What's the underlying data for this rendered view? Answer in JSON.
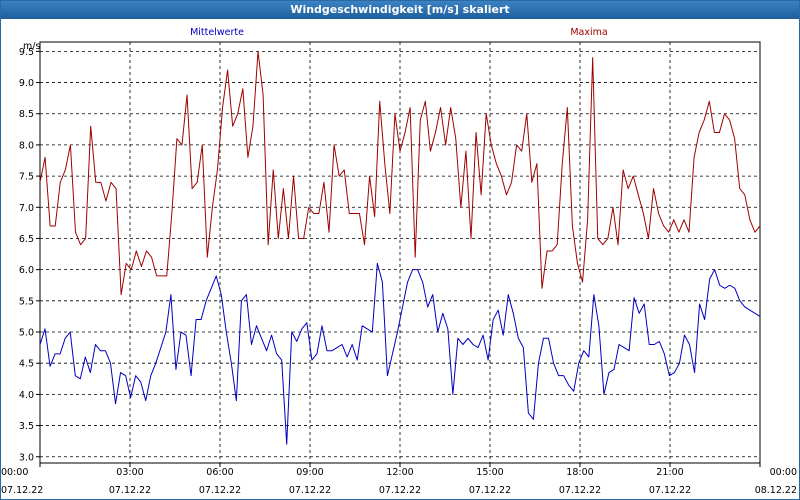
{
  "window": {
    "title": "Windgeschwindigkeit [m/s] skaliert"
  },
  "chart_data": {
    "type": "line",
    "title": "Windgeschwindigkeit [m/s] skaliert",
    "ylabel": "m/s",
    "ylim": [
      2.9,
      9.65
    ],
    "y_ticks": [
      "3.0",
      "3.5",
      "4.0",
      "4.5",
      "5.0",
      "5.5",
      "6.0",
      "6.5",
      "7.0",
      "7.5",
      "8.0",
      "8.5",
      "9.0",
      "9.5"
    ],
    "x_ticks": [
      {
        "time": "00:00",
        "date": "07.12.22"
      },
      {
        "time": "03:00",
        "date": "07.12.22"
      },
      {
        "time": "06:00",
        "date": "07.12.22"
      },
      {
        "time": "09:00",
        "date": "07.12.22"
      },
      {
        "time": "12:00",
        "date": "07.12.22"
      },
      {
        "time": "15:00",
        "date": "07.12.22"
      },
      {
        "time": "18:00",
        "date": "07.12.22"
      },
      {
        "time": "21:00",
        "date": "07.12.22"
      },
      {
        "time": "00:00",
        "date": "08.12.22"
      }
    ],
    "grid": true,
    "legend_placement": "top",
    "series": [
      {
        "name": "Mittelwerte",
        "color": "#0000c0",
        "values": [
          4.8,
          5.05,
          4.45,
          4.65,
          4.65,
          4.9,
          5.0,
          4.3,
          4.25,
          4.6,
          4.35,
          4.8,
          4.7,
          4.7,
          4.5,
          3.85,
          4.35,
          4.3,
          3.95,
          4.3,
          4.2,
          3.9,
          4.3,
          4.5,
          4.75,
          5.0,
          5.6,
          4.4,
          5.0,
          4.95,
          4.3,
          5.2,
          5.2,
          5.5,
          5.7,
          5.9,
          5.6,
          5.0,
          4.5,
          3.9,
          5.5,
          5.6,
          4.8,
          5.1,
          4.9,
          4.7,
          4.95,
          4.65,
          4.55,
          3.2,
          5.0,
          4.85,
          5.05,
          5.15,
          4.55,
          4.65,
          5.1,
          4.7,
          4.7,
          4.75,
          4.8,
          4.6,
          4.8,
          4.55,
          5.1,
          5.05,
          5.0,
          6.1,
          5.8,
          4.3,
          4.65,
          5.0,
          5.4,
          5.8,
          6.0,
          6.0,
          5.8,
          5.4,
          5.6,
          5.0,
          5.3,
          5.05,
          4.0,
          4.9,
          4.8,
          4.9,
          4.8,
          4.75,
          4.95,
          4.55,
          5.2,
          5.35,
          4.95,
          5.6,
          5.3,
          4.9,
          4.75,
          3.7,
          3.6,
          4.5,
          4.9,
          4.9,
          4.5,
          4.3,
          4.3,
          4.15,
          4.05,
          4.5,
          4.7,
          4.6,
          5.6,
          5.1,
          4.0,
          4.35,
          4.4,
          4.8,
          4.75,
          4.7,
          5.55,
          5.3,
          5.45,
          4.8,
          4.8,
          4.85,
          4.65,
          4.3,
          4.35,
          4.5,
          4.95,
          4.8,
          4.35,
          5.45,
          5.2,
          5.85,
          6.0,
          5.75,
          5.7,
          5.75,
          5.7,
          5.5,
          5.4,
          5.35,
          5.3,
          5.25
        ]
      },
      {
        "name": "Maxima",
        "color": "#a00000",
        "values": [
          7.4,
          7.8,
          6.7,
          6.7,
          7.4,
          7.6,
          8.0,
          6.6,
          6.4,
          6.5,
          8.3,
          7.4,
          7.4,
          7.1,
          7.4,
          7.3,
          5.6,
          6.1,
          6.0,
          6.3,
          6.05,
          6.3,
          6.2,
          5.9,
          5.9,
          5.9,
          6.9,
          8.1,
          8.0,
          8.8,
          7.3,
          7.4,
          8.0,
          6.2,
          7.0,
          7.6,
          8.6,
          9.2,
          8.3,
          8.5,
          8.9,
          7.8,
          8.3,
          9.5,
          8.8,
          6.4,
          7.6,
          6.5,
          7.3,
          6.5,
          7.5,
          6.5,
          6.5,
          7.0,
          6.9,
          6.9,
          7.4,
          6.6,
          8.0,
          7.5,
          7.6,
          6.9,
          6.9,
          6.9,
          6.4,
          7.5,
          6.85,
          8.7,
          7.7,
          6.9,
          8.5,
          7.9,
          8.2,
          8.6,
          6.2,
          8.4,
          8.7,
          7.9,
          8.2,
          8.6,
          8.0,
          8.6,
          8.1,
          7.0,
          7.9,
          6.5,
          8.2,
          7.2,
          8.5,
          8.0,
          7.7,
          7.5,
          7.2,
          7.4,
          8.0,
          7.9,
          8.5,
          7.4,
          7.7,
          5.7,
          6.3,
          6.3,
          6.4,
          7.7,
          8.6,
          6.7,
          6.1,
          5.8,
          6.8,
          9.4,
          6.5,
          6.4,
          6.5,
          7.0,
          6.4,
          7.6,
          7.3,
          7.5,
          7.2,
          6.9,
          6.5,
          7.3,
          6.9,
          6.7,
          6.6,
          6.8,
          6.6,
          6.8,
          6.6,
          7.8,
          8.2,
          8.4,
          8.7,
          8.2,
          8.2,
          8.5,
          8.4,
          8.1,
          7.3,
          7.2,
          6.8,
          6.6,
          6.7
        ]
      }
    ]
  }
}
